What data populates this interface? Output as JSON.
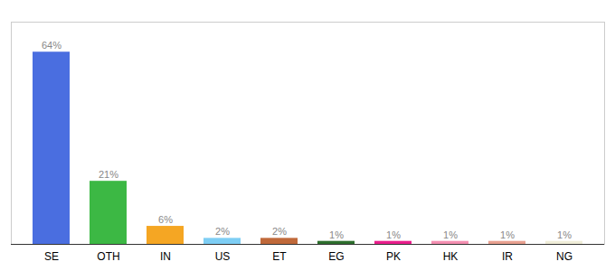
{
  "chart_data": {
    "type": "bar",
    "categories": [
      "SE",
      "OTH",
      "IN",
      "US",
      "ET",
      "EG",
      "PK",
      "HK",
      "IR",
      "NG"
    ],
    "values": [
      64,
      21,
      6,
      2,
      2,
      1,
      1,
      1,
      1,
      1
    ],
    "value_labels": [
      "64%",
      "21%",
      "6%",
      "2%",
      "2%",
      "1%",
      "1%",
      "1%",
      "1%",
      "1%"
    ],
    "colors": [
      "#4a6ee0",
      "#3cb844",
      "#f5a623",
      "#7ecef4",
      "#c0693a",
      "#2d6e2d",
      "#e91e8c",
      "#f48fb1",
      "#e8a090",
      "#f0edd8"
    ],
    "ylim": [
      0,
      74
    ],
    "grid": false,
    "data_labels": true,
    "tick_labels": "x"
  }
}
